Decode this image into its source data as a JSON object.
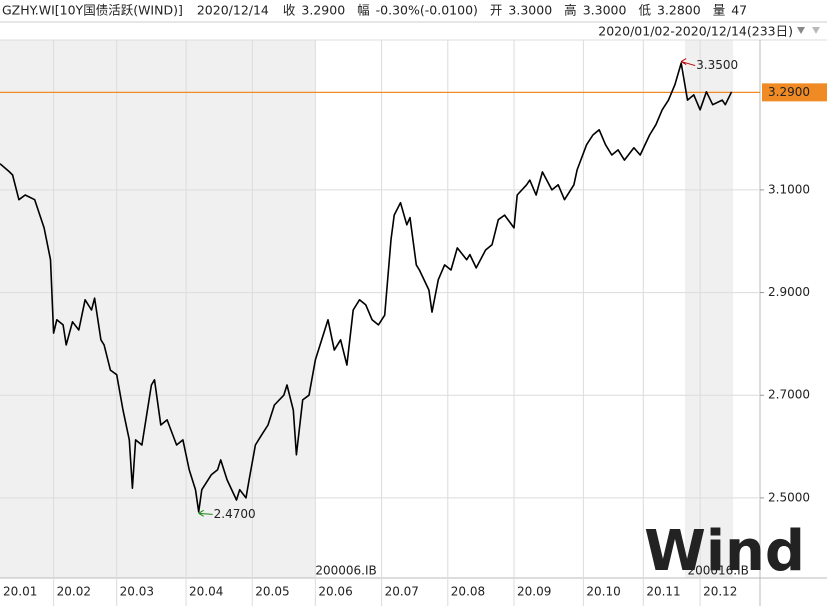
{
  "header": {
    "symbol": "GZHY.WI[10Y国债活跃(WIND)]",
    "date": "2020/12/14",
    "fields": [
      {
        "label": "收",
        "value": "3.2900"
      },
      {
        "label": "幅",
        "value": "-0.30%(-0.0100)"
      },
      {
        "label": "开",
        "value": "3.3000"
      },
      {
        "label": "高",
        "value": "3.3000"
      },
      {
        "label": "低",
        "value": "3.2800"
      },
      {
        "label": "量",
        "value": "47"
      }
    ],
    "range": "2020/01/02-2020/12/14(233日)"
  },
  "chart_data": {
    "type": "line",
    "color": "#000000",
    "x": [
      0,
      3,
      4,
      6,
      8,
      11,
      14,
      16,
      17,
      18,
      20,
      21,
      23,
      25,
      27,
      29,
      30,
      32,
      33,
      35,
      37,
      39,
      41,
      42,
      43,
      45,
      48,
      49,
      51,
      53,
      56,
      58,
      60,
      62,
      63,
      64,
      67,
      69,
      70,
      72,
      75,
      76,
      78,
      79,
      81,
      83,
      85,
      87,
      90,
      91,
      93,
      94,
      96,
      98,
      100,
      102,
      104,
      106,
      108,
      110,
      112,
      114,
      116,
      118,
      120,
      122,
      124,
      125,
      127,
      129,
      130,
      132,
      133,
      136,
      137,
      139,
      141,
      143,
      145,
      148,
      149,
      151,
      154,
      156,
      158,
      160,
      163,
      164,
      167,
      168,
      170,
      172,
      175,
      177,
      179,
      182,
      183,
      186,
      188,
      190,
      192,
      194,
      196,
      198,
      201,
      203,
      206,
      208,
      210,
      212,
      214,
      216,
      218,
      220,
      222,
      224,
      226,
      229,
      230,
      232
    ],
    "values": [
      3.151,
      3.135,
      3.129,
      3.081,
      3.09,
      3.081,
      3.026,
      2.964,
      2.821,
      2.847,
      2.837,
      2.798,
      2.843,
      2.827,
      2.886,
      2.866,
      2.889,
      2.808,
      2.798,
      2.749,
      2.74,
      2.671,
      2.613,
      2.519,
      2.613,
      2.603,
      2.72,
      2.73,
      2.642,
      2.652,
      2.603,
      2.613,
      2.555,
      2.516,
      2.473,
      2.516,
      2.545,
      2.555,
      2.574,
      2.535,
      2.496,
      2.516,
      2.5,
      2.535,
      2.603,
      2.623,
      2.642,
      2.681,
      2.7,
      2.72,
      2.671,
      2.584,
      2.691,
      2.7,
      2.769,
      2.808,
      2.847,
      2.788,
      2.808,
      2.759,
      2.866,
      2.886,
      2.876,
      2.847,
      2.837,
      2.856,
      3.003,
      3.051,
      3.075,
      3.032,
      3.046,
      2.954,
      2.944,
      2.905,
      2.862,
      2.925,
      2.954,
      2.944,
      2.987,
      2.964,
      2.974,
      2.948,
      2.983,
      2.993,
      3.042,
      3.051,
      3.026,
      3.09,
      3.11,
      3.119,
      3.09,
      3.135,
      3.1,
      3.11,
      3.081,
      3.11,
      3.139,
      3.188,
      3.207,
      3.217,
      3.188,
      3.168,
      3.178,
      3.158,
      3.182,
      3.168,
      3.207,
      3.227,
      3.256,
      3.275,
      3.305,
      3.347,
      3.275,
      3.285,
      3.256,
      3.291,
      3.266,
      3.275,
      3.266,
      3.291
    ],
    "xlim": [
      0,
      241
    ],
    "xticks": [
      {
        "value": 0,
        "label": "20.01"
      },
      {
        "value": 17,
        "label": "20.02"
      },
      {
        "value": 37,
        "label": "20.03"
      },
      {
        "value": 59,
        "label": "20.04"
      },
      {
        "value": 80,
        "label": "20.05"
      },
      {
        "value": 100,
        "label": "20.06"
      },
      {
        "value": 121,
        "label": "20.07"
      },
      {
        "value": 142,
        "label": "20.08"
      },
      {
        "value": 163,
        "label": "20.09"
      },
      {
        "value": 185,
        "label": "20.10"
      },
      {
        "value": 204,
        "label": "20.11"
      },
      {
        "value": 222,
        "label": "20.12"
      }
    ],
    "ylim": [
      2.344,
      3.392
    ],
    "yticks": [
      {
        "value": 2.5,
        "label": "2.5000"
      },
      {
        "value": 2.7,
        "label": "2.7000"
      },
      {
        "value": 2.9,
        "label": "2.9000"
      },
      {
        "value": 3.1,
        "label": "3.1000"
      }
    ],
    "grid": true,
    "last_price": {
      "value": 3.29,
      "label": "3.2900",
      "color": "#f08a24"
    },
    "annotations": [
      {
        "text": "3.3500",
        "x": 216,
        "y": 3.35,
        "color": "#c00000"
      },
      {
        "text": "2.4700",
        "x": 63,
        "y": 2.47,
        "color": "#1a8a1a"
      }
    ],
    "contracts": [
      {
        "text": "200006.IB",
        "x": 100
      },
      {
        "text": "200016.IB",
        "x": 218
      }
    ],
    "watermark": "Wind"
  }
}
